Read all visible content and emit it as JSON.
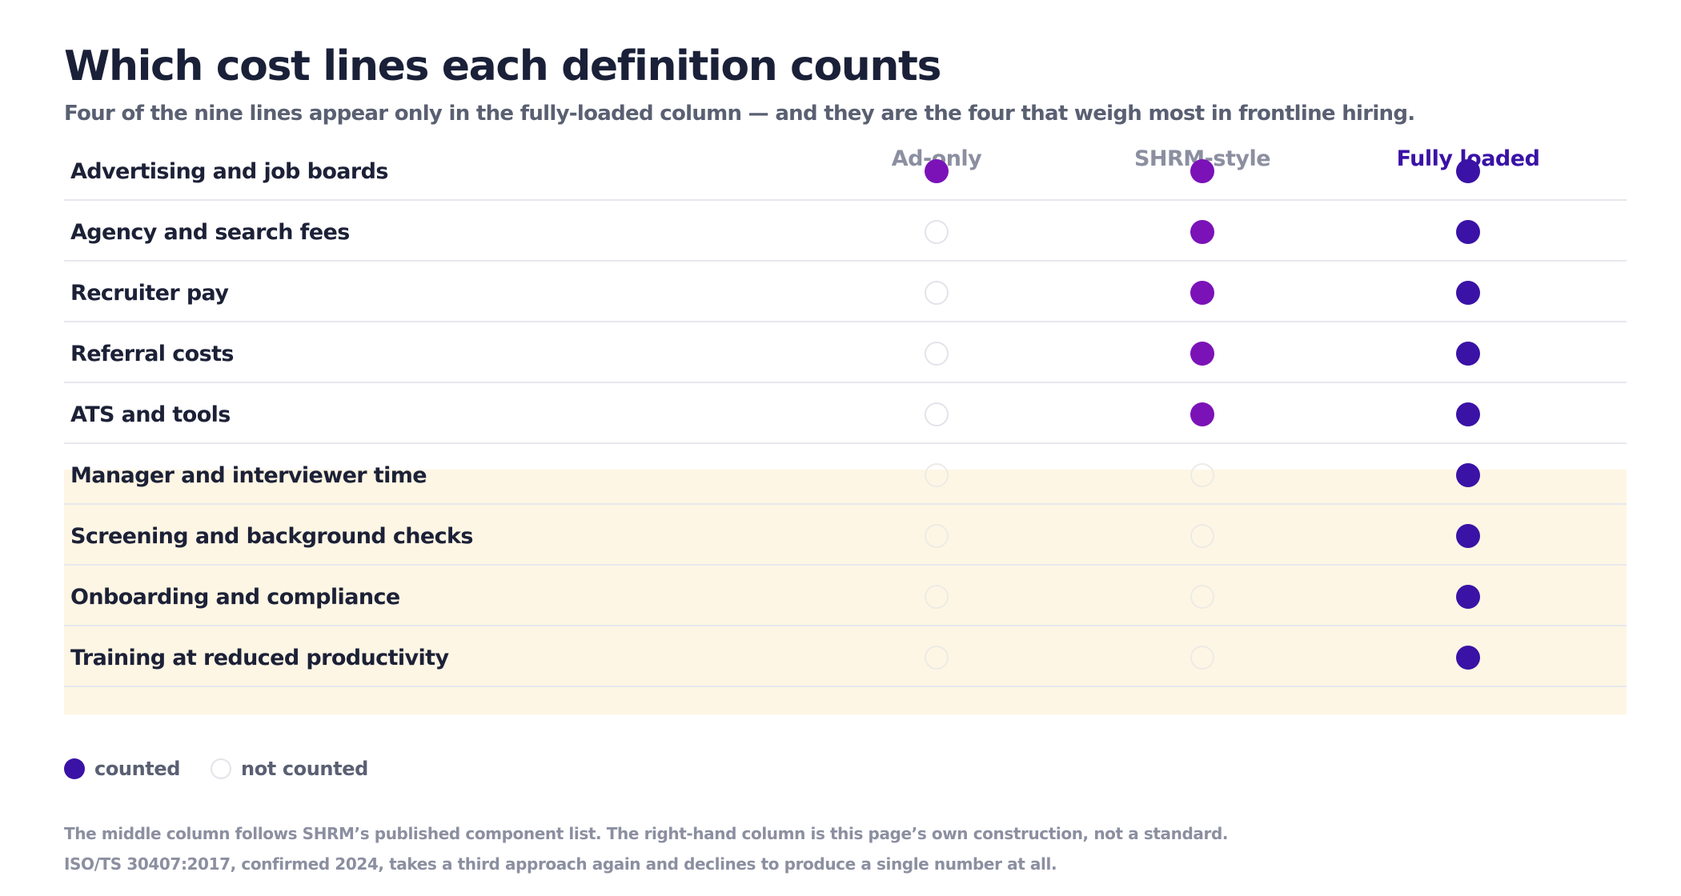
{
  "title": "Which cost lines each definition counts",
  "subtitle": "Four of the nine lines appear only in the fully-loaded column — and they are the four that weigh most in frontline hiring.",
  "chart_data": {
    "type": "table",
    "columns": [
      {
        "label": "Ad-only",
        "emphasis": false,
        "color": "#7b12b8"
      },
      {
        "label": "SHRM-style",
        "emphasis": false,
        "color": "#7b12b8"
      },
      {
        "label": "Fully loaded",
        "emphasis": true,
        "color": "#3a12a6"
      }
    ],
    "rows": [
      {
        "label": "Advertising and job boards",
        "highlight": false,
        "counted": [
          true,
          true,
          true
        ]
      },
      {
        "label": "Agency and search fees",
        "highlight": false,
        "counted": [
          false,
          true,
          true
        ]
      },
      {
        "label": "Recruiter pay",
        "highlight": false,
        "counted": [
          false,
          true,
          true
        ]
      },
      {
        "label": "Referral costs",
        "highlight": false,
        "counted": [
          false,
          true,
          true
        ]
      },
      {
        "label": "ATS and tools",
        "highlight": false,
        "counted": [
          false,
          true,
          true
        ]
      },
      {
        "label": "Manager and interviewer time",
        "highlight": true,
        "counted": [
          false,
          false,
          true
        ]
      },
      {
        "label": "Screening and background checks",
        "highlight": true,
        "counted": [
          false,
          false,
          true
        ]
      },
      {
        "label": "Onboarding and compliance",
        "highlight": true,
        "counted": [
          false,
          false,
          true
        ]
      },
      {
        "label": "Training at reduced productivity",
        "highlight": true,
        "counted": [
          false,
          false,
          true
        ]
      }
    ],
    "legend": {
      "counted": "counted",
      "not_counted": "not counted",
      "placement": "bottom-left"
    },
    "highlight_color": "#fef6e4"
  },
  "notes": [
    "The middle column follows SHRM’s published component list. The right-hand column is this page’s own construction, not a standard.",
    "ISO/TS 30407:2017, confirmed 2024, takes a third approach again and declines to produce a single number at all."
  ]
}
